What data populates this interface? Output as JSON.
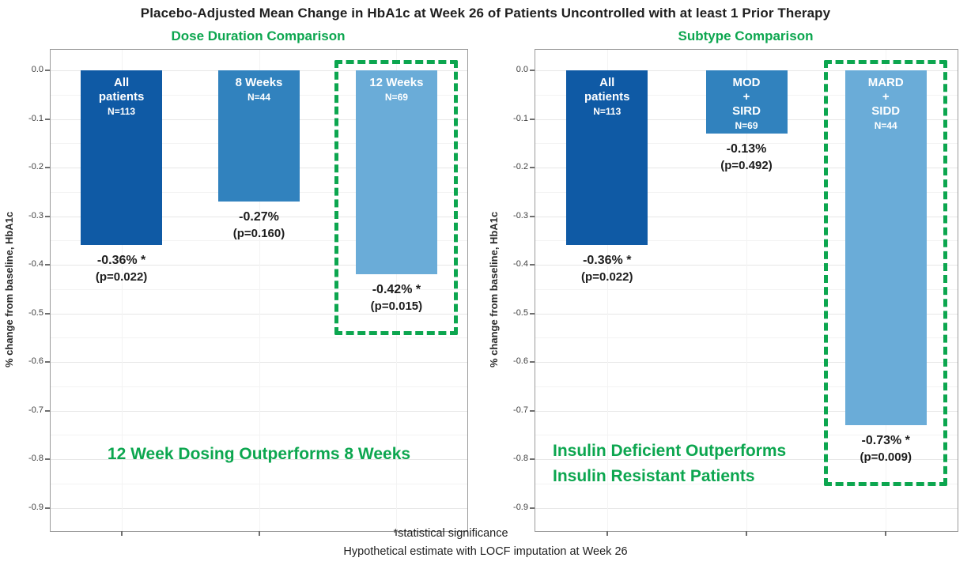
{
  "title": "Placebo-Adjusted Mean Change in HbA1c at Week 26 of Patients Uncontrolled with at least 1 Prior Therapy",
  "footer": {
    "significance_note": "*statistical significance",
    "estimate_note": "Hypothetical estimate with LOCF imputation at Week 26"
  },
  "colors": {
    "accent_green": "#0CA64F",
    "bar_dark_blue": "#0F5AA5",
    "bar_medium_blue": "#3182BE",
    "bar_light_blue": "#6AACD8",
    "axis_border_gray": "#9A9A9A",
    "major_grid": "#E7E7E7",
    "minor_grid": "#F3F3F3"
  },
  "axis": {
    "label": "% change from baseline, HbA1c",
    "ylim": [
      -0.95,
      0.04
    ],
    "grid_step": 0.05,
    "ticks": [
      {
        "label": "0.0",
        "v": 0.0
      },
      {
        "label": "-0.1",
        "v": -0.1
      },
      {
        "label": "-0.2",
        "v": -0.2
      },
      {
        "label": "-0.3",
        "v": -0.3
      },
      {
        "label": "-0.4",
        "v": -0.4
      },
      {
        "label": "-0.5",
        "v": -0.5
      },
      {
        "label": "-0.6",
        "v": -0.6
      },
      {
        "label": "-0.7",
        "v": -0.7
      },
      {
        "label": "-0.8",
        "v": -0.8
      },
      {
        "label": "-0.9",
        "v": -0.9
      }
    ]
  },
  "chart_data": [
    {
      "type": "bar",
      "title": "Dose Duration Comparison",
      "ylabel": "% change from baseline, HbA1c",
      "ylim": [
        -0.95,
        0.04
      ],
      "categories": [
        "All patients",
        "8 Weeks",
        "12 Weeks"
      ],
      "values": [
        -0.36,
        -0.27,
        -0.42
      ],
      "bars": [
        {
          "name": "All\npatients",
          "n": "N=113",
          "value": -0.36,
          "value_label": "-0.36% *",
          "p_label": "(p=0.022)",
          "color": "#0F5AA5",
          "highlighted": false
        },
        {
          "name": "8 Weeks",
          "n": "N=44",
          "value": -0.27,
          "value_label": "-0.27%",
          "p_label": "(p=0.160)",
          "color": "#3182BE",
          "highlighted": false
        },
        {
          "name": "12 Weeks",
          "n": "N=69",
          "value": -0.42,
          "value_label": "-0.42% *",
          "p_label": "(p=0.015)",
          "color": "#6AACD8",
          "highlighted": true
        }
      ],
      "annotation": "12 Week Dosing Outperforms 8 Weeks"
    },
    {
      "type": "bar",
      "title": "Subtype Comparison",
      "ylabel": "% change from baseline, HbA1c",
      "ylim": [
        -0.95,
        0.04
      ],
      "categories": [
        "All patients",
        "MOD + SIRD",
        "MARD + SIDD"
      ],
      "values": [
        -0.36,
        -0.13,
        -0.73
      ],
      "bars": [
        {
          "name": "All\npatients",
          "n": "N=113",
          "value": -0.36,
          "value_label": "-0.36% *",
          "p_label": "(p=0.022)",
          "color": "#0F5AA5",
          "highlighted": false
        },
        {
          "name": "MOD\n+\nSIRD",
          "n": "N=69",
          "value": -0.13,
          "value_label": "-0.13%",
          "p_label": "(p=0.492)",
          "color": "#3182BE",
          "highlighted": false
        },
        {
          "name": "MARD\n+\nSIDD",
          "n": "N=44",
          "value": -0.73,
          "value_label": "-0.73% *",
          "p_label": "(p=0.009)",
          "color": "#6AACD8",
          "highlighted": true
        }
      ],
      "annotation": "Insulin Deficient Outperforms\nInsulin Resistant Patients"
    }
  ]
}
